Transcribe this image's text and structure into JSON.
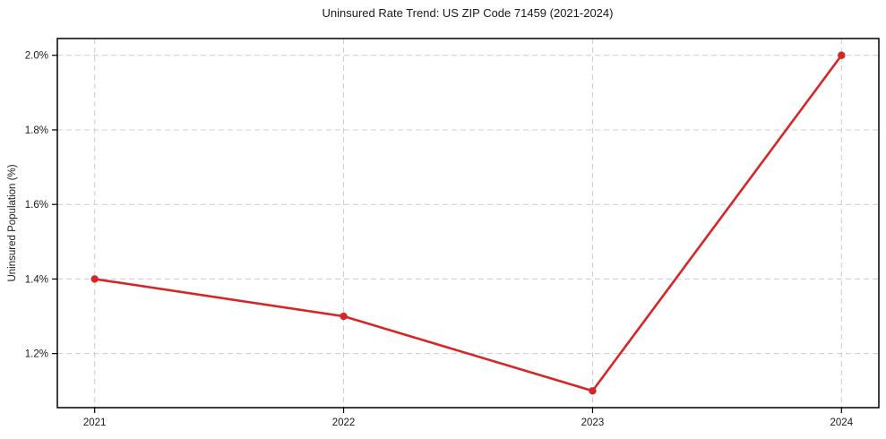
{
  "chart_data": {
    "type": "line",
    "title": "Uninsured Rate Trend: US ZIP Code 71459 (2021-2024)",
    "xlabel": "",
    "ylabel": "Uninsured Population (%)",
    "x": [
      2021,
      2022,
      2023,
      2024
    ],
    "x_tick_labels": [
      "2021",
      "2022",
      "2023",
      "2024"
    ],
    "values": [
      1.4,
      1.3,
      1.1,
      2.0
    ],
    "y_ticks": [
      1.2,
      1.4,
      1.6,
      1.8,
      2.0
    ],
    "y_tick_labels": [
      "1.2%",
      "1.4%",
      "1.6%",
      "1.8%",
      "2.0%"
    ],
    "xlim": [
      2020.85,
      2024.15
    ],
    "ylim": [
      1.055,
      2.045
    ],
    "grid": true,
    "grid_style": "dashed",
    "legend_position": "none",
    "marker": "circle",
    "colors": {
      "line": "#d62728",
      "marker": "#d62728",
      "grid": "#cccccc",
      "spine": "#000000",
      "text": "#1a1a1a",
      "background": "#ffffff"
    }
  }
}
